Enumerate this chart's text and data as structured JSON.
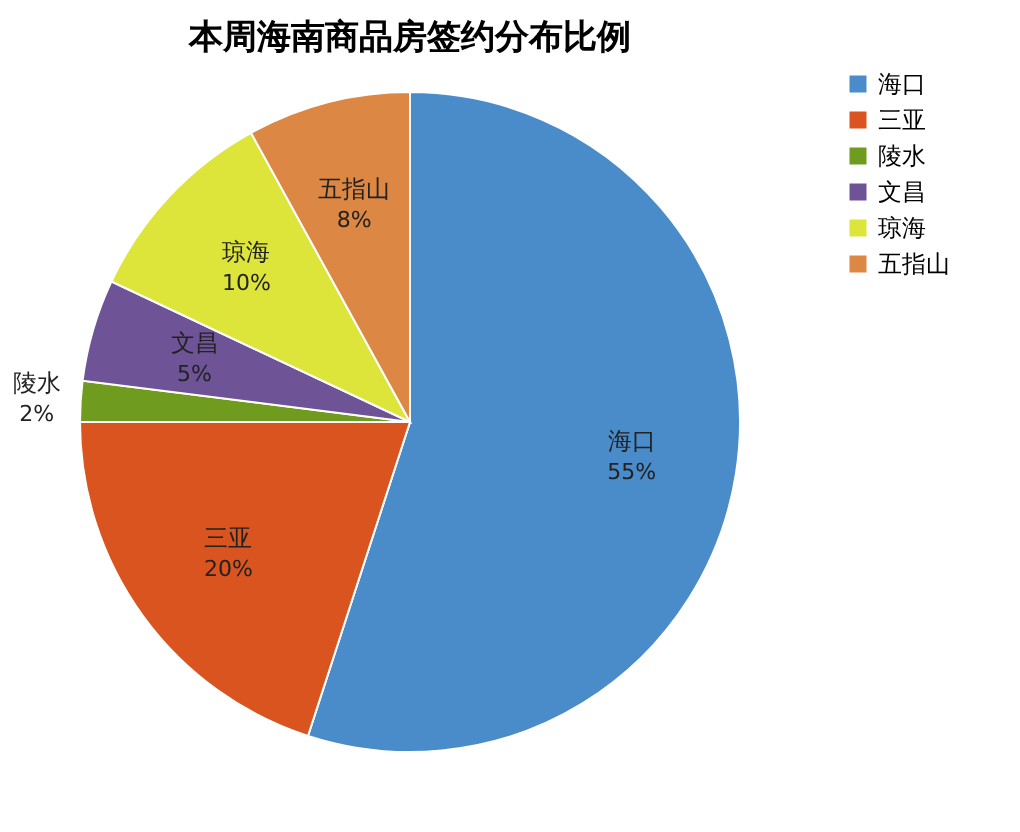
{
  "chart_data": {
    "type": "pie",
    "title": "本周海南商品房签约分布比例",
    "categories": [
      "海口",
      "三亚",
      "陵水",
      "文昌",
      "琼海",
      "五指山"
    ],
    "values": [
      55,
      20,
      2,
      5,
      10,
      8
    ],
    "value_labels": [
      "55%",
      "20%",
      "2%",
      "5%",
      "10%",
      "8%"
    ],
    "colors": [
      "#4a8bc9",
      "#d9541f",
      "#6f9b1f",
      "#6e5397",
      "#dde53b",
      "#dc8743"
    ],
    "legend": "right"
  }
}
